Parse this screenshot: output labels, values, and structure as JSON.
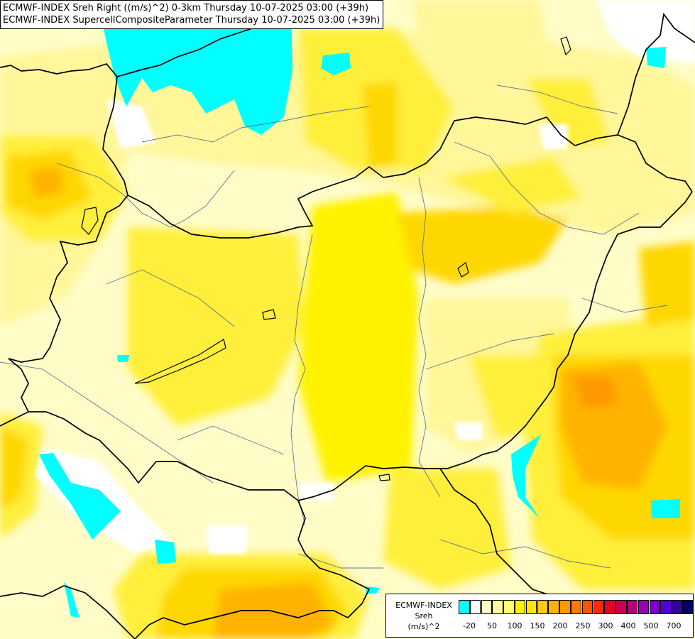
{
  "header": {
    "line1": "ECMWF-INDEX Sreh Right ((m/s)^2) 0-3km Thursday 10-07-2025 03:00 (+39h)",
    "line2": "ECMWF-INDEX SupercellCompositeParameter Thursday 10-07-2025 03:00 (+39h)"
  },
  "legend": {
    "line1": "ECMWF-INDEX",
    "line2": "Sreh",
    "line3": "(m/s)^2",
    "colors": [
      "#00ffff",
      "#ffffff",
      "#fffcc8",
      "#fff9a0",
      "#ffff70",
      "#fff200",
      "#ffe600",
      "#ffcc00",
      "#ffb300",
      "#ff9900",
      "#ff7a00",
      "#ff5500",
      "#ff2a00",
      "#e60026",
      "#cc0052",
      "#b3007f",
      "#9900ad",
      "#7a00cc",
      "#5500cc",
      "#330099",
      "#000066"
    ],
    "ticks": [
      "-20",
      "50",
      "100",
      "150",
      "200",
      "250",
      "300",
      "400",
      "500",
      "700"
    ]
  },
  "map_colors": {
    "background": "#fffcc8",
    "light_yellow": "#fff79a",
    "yellow": "#ffef3a",
    "bright_yellow": "#fff200",
    "gold": "#ffd700",
    "orange": "#ffb300",
    "dark_orange": "#ff9900",
    "cyan": "#00ffff",
    "white": "#ffffff",
    "borders": "#000000",
    "rivers": "#4a5d8a"
  }
}
